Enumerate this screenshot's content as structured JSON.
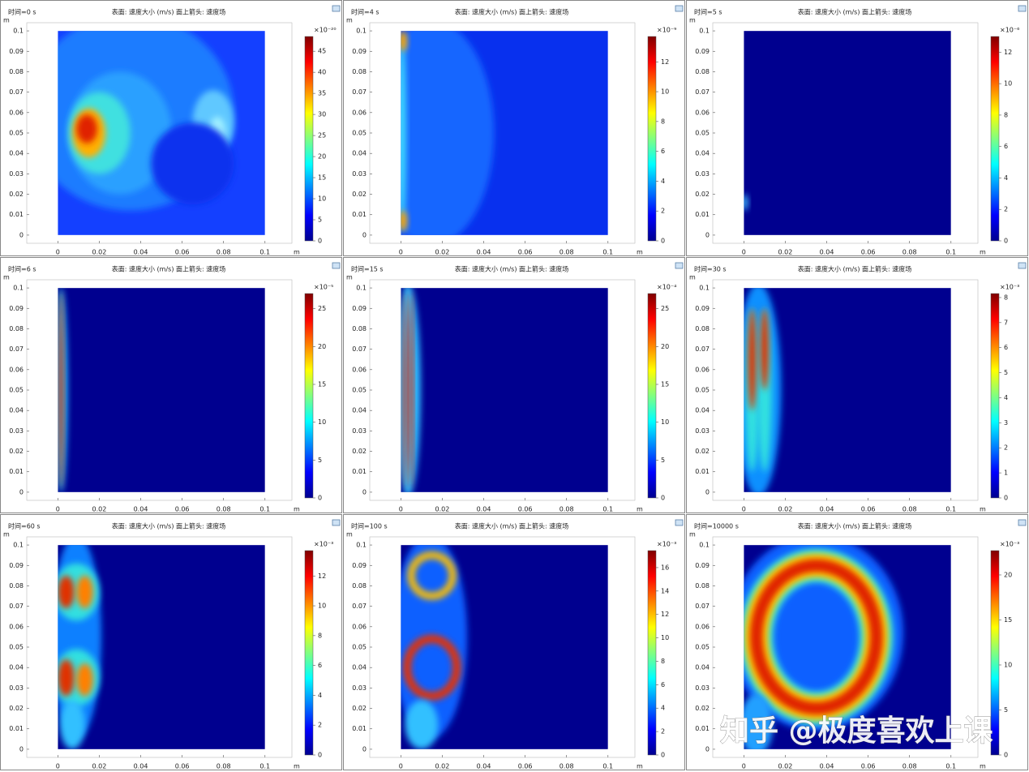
{
  "chart_data": [
    {
      "type": "heatmap",
      "time_label": "时间=0 s",
      "title": "表面: 速度大小 (m/s)  面上箭头: 速度场",
      "xlabel": "m",
      "ylabel": "m",
      "xlim": [
        -0.015,
        0.113
      ],
      "ylim": [
        -0.004,
        0.104
      ],
      "xticks": [
        0,
        0.02,
        0.04,
        0.06,
        0.08,
        0.1
      ],
      "yticks": [
        0,
        0.01,
        0.02,
        0.03,
        0.04,
        0.05,
        0.06,
        0.07,
        0.08,
        0.09,
        0.1
      ],
      "colorbar_exponent": "×10⁻²⁰",
      "colorbar_lim": [
        0,
        48.5
      ],
      "colorbar_ticks": [
        0,
        5,
        10,
        15,
        20,
        25,
        30,
        35,
        40,
        45
      ],
      "colormap": [
        "#00008f",
        "#0000ff",
        "#0080ff",
        "#00ffff",
        "#80ff80",
        "#ffff00",
        "#ff8000",
        "#ff0000",
        "#800000"
      ]
    },
    {
      "type": "heatmap",
      "time_label": "时间=4 s",
      "title": "表面: 速度大小 (m/s)  面上箭头: 速度场",
      "xlabel": "m",
      "ylabel": "m",
      "xlim": [
        -0.015,
        0.113
      ],
      "ylim": [
        -0.004,
        0.104
      ],
      "xticks": [
        0,
        0.02,
        0.04,
        0.06,
        0.08,
        0.1
      ],
      "yticks": [
        0,
        0.01,
        0.02,
        0.03,
        0.04,
        0.05,
        0.06,
        0.07,
        0.08,
        0.09,
        0.1
      ],
      "colorbar_exponent": "×10⁻⁹",
      "colorbar_lim": [
        0,
        13.7
      ],
      "colorbar_ticks": [
        0,
        2,
        4,
        6,
        8,
        10,
        12
      ],
      "colormap": [
        "#00008f",
        "#0000ff",
        "#0080ff",
        "#00ffff",
        "#80ff80",
        "#ffff00",
        "#ff8000",
        "#ff0000",
        "#800000"
      ]
    },
    {
      "type": "heatmap",
      "time_label": "时间=5 s",
      "title": "表面: 速度大小 (m/s)  面上箭头: 速度场",
      "xlabel": "m",
      "ylabel": "m",
      "xlim": [
        -0.015,
        0.113
      ],
      "ylim": [
        -0.004,
        0.104
      ],
      "xticks": [
        0,
        0.02,
        0.04,
        0.06,
        0.08,
        0.1
      ],
      "yticks": [
        0,
        0.01,
        0.02,
        0.03,
        0.04,
        0.05,
        0.06,
        0.07,
        0.08,
        0.09,
        0.1
      ],
      "colorbar_exponent": "×10⁻⁶",
      "colorbar_lim": [
        0,
        13
      ],
      "colorbar_ticks": [
        0,
        2,
        4,
        6,
        8,
        10,
        12
      ],
      "colormap": [
        "#00008f",
        "#0000ff",
        "#0080ff",
        "#00ffff",
        "#80ff80",
        "#ffff00",
        "#ff8000",
        "#ff0000",
        "#800000"
      ]
    },
    {
      "type": "heatmap",
      "time_label": "时间=6 s",
      "title": "表面: 速度大小 (m/s)  面上箭头: 速度场",
      "xlabel": "m",
      "ylabel": "m",
      "xlim": [
        -0.015,
        0.113
      ],
      "ylim": [
        -0.004,
        0.104
      ],
      "xticks": [
        0,
        0.02,
        0.04,
        0.06,
        0.08,
        0.1
      ],
      "yticks": [
        0,
        0.01,
        0.02,
        0.03,
        0.04,
        0.05,
        0.06,
        0.07,
        0.08,
        0.09,
        0.1
      ],
      "colorbar_exponent": "×10⁻⁵",
      "colorbar_lim": [
        0,
        27
      ],
      "colorbar_ticks": [
        0,
        5,
        10,
        15,
        20,
        25
      ],
      "colormap": [
        "#00008f",
        "#0000ff",
        "#0080ff",
        "#00ffff",
        "#80ff80",
        "#ffff00",
        "#ff8000",
        "#ff0000",
        "#800000"
      ]
    },
    {
      "type": "heatmap",
      "time_label": "时间=15 s",
      "title": "表面: 速度大小 (m/s)  面上箭头: 速度场",
      "xlabel": "m",
      "ylabel": "m",
      "xlim": [
        -0.015,
        0.113
      ],
      "ylim": [
        -0.004,
        0.104
      ],
      "xticks": [
        0,
        0.02,
        0.04,
        0.06,
        0.08,
        0.1
      ],
      "yticks": [
        0,
        0.01,
        0.02,
        0.03,
        0.04,
        0.05,
        0.06,
        0.07,
        0.08,
        0.09,
        0.1
      ],
      "colorbar_exponent": "×10⁻⁴",
      "colorbar_lim": [
        0,
        27
      ],
      "colorbar_ticks": [
        0,
        5,
        10,
        15,
        20,
        25
      ],
      "colormap": [
        "#00008f",
        "#0000ff",
        "#0080ff",
        "#00ffff",
        "#80ff80",
        "#ffff00",
        "#ff8000",
        "#ff0000",
        "#800000"
      ]
    },
    {
      "type": "heatmap",
      "time_label": "时间=30 s",
      "title": "表面: 速度大小 (m/s)  面上箭头: 速度场",
      "xlabel": "m",
      "ylabel": "m",
      "xlim": [
        -0.015,
        0.113
      ],
      "ylim": [
        -0.004,
        0.104
      ],
      "xticks": [
        0,
        0.02,
        0.04,
        0.06,
        0.08,
        0.1
      ],
      "yticks": [
        0,
        0.01,
        0.02,
        0.03,
        0.04,
        0.05,
        0.06,
        0.07,
        0.08,
        0.09,
        0.1
      ],
      "colorbar_exponent": "×10⁻³",
      "colorbar_lim": [
        0,
        8.16
      ],
      "colorbar_ticks": [
        0,
        1,
        2,
        3,
        4,
        5,
        6,
        7,
        8
      ],
      "colormap": [
        "#00008f",
        "#0000ff",
        "#0080ff",
        "#00ffff",
        "#80ff80",
        "#ffff00",
        "#ff8000",
        "#ff0000",
        "#800000"
      ]
    },
    {
      "type": "heatmap",
      "time_label": "时间=60 s",
      "title": "表面: 速度大小 (m/s)  面上箭头: 速度场",
      "xlabel": "m",
      "ylabel": "m",
      "xlim": [
        -0.015,
        0.113
      ],
      "ylim": [
        -0.004,
        0.104
      ],
      "xticks": [
        0,
        0.02,
        0.04,
        0.06,
        0.08,
        0.1
      ],
      "yticks": [
        0,
        0.01,
        0.02,
        0.03,
        0.04,
        0.05,
        0.06,
        0.07,
        0.08,
        0.09,
        0.1
      ],
      "colorbar_exponent": "×10⁻³",
      "colorbar_lim": [
        0,
        13.7
      ],
      "colorbar_ticks": [
        0,
        2,
        4,
        6,
        8,
        10,
        12
      ],
      "colormap": [
        "#00008f",
        "#0000ff",
        "#0080ff",
        "#00ffff",
        "#80ff80",
        "#ffff00",
        "#ff8000",
        "#ff0000",
        "#800000"
      ]
    },
    {
      "type": "heatmap",
      "time_label": "时间=100 s",
      "title": "表面: 速度大小 (m/s)  面上箭头: 速度场",
      "xlabel": "m",
      "ylabel": "m",
      "xlim": [
        -0.015,
        0.113
      ],
      "ylim": [
        -0.004,
        0.104
      ],
      "xticks": [
        0,
        0.02,
        0.04,
        0.06,
        0.08,
        0.1
      ],
      "yticks": [
        0,
        0.01,
        0.02,
        0.03,
        0.04,
        0.05,
        0.06,
        0.07,
        0.08,
        0.09,
        0.1
      ],
      "colorbar_exponent": "×10⁻³",
      "colorbar_lim": [
        0,
        17.45
      ],
      "colorbar_ticks": [
        0,
        2,
        4,
        6,
        8,
        10,
        12,
        14,
        16
      ],
      "colormap": [
        "#00008f",
        "#0000ff",
        "#0080ff",
        "#00ffff",
        "#80ff80",
        "#ffff00",
        "#ff8000",
        "#ff0000",
        "#800000"
      ]
    },
    {
      "type": "heatmap",
      "time_label": "时间=10000 s",
      "title": "表面: 速度大小 (m/s)  面上箭头: 速度场",
      "xlabel": "m",
      "ylabel": "m",
      "xlim": [
        -0.015,
        0.113
      ],
      "ylim": [
        -0.004,
        0.104
      ],
      "xticks": [
        0,
        0.02,
        0.04,
        0.06,
        0.08,
        0.1
      ],
      "yticks": [
        0,
        0.01,
        0.02,
        0.03,
        0.04,
        0.05,
        0.06,
        0.07,
        0.08,
        0.09,
        0.1
      ],
      "colorbar_exponent": "×10⁻³",
      "colorbar_lim": [
        0,
        22.7
      ],
      "colorbar_ticks": [
        0,
        5,
        10,
        15,
        20
      ],
      "colormap": [
        "#00008f",
        "#0000ff",
        "#0080ff",
        "#00ffff",
        "#80ff80",
        "#ffff00",
        "#ff8000",
        "#ff0000",
        "#800000"
      ]
    }
  ],
  "watermark": "知乎 @极度喜欢上课"
}
